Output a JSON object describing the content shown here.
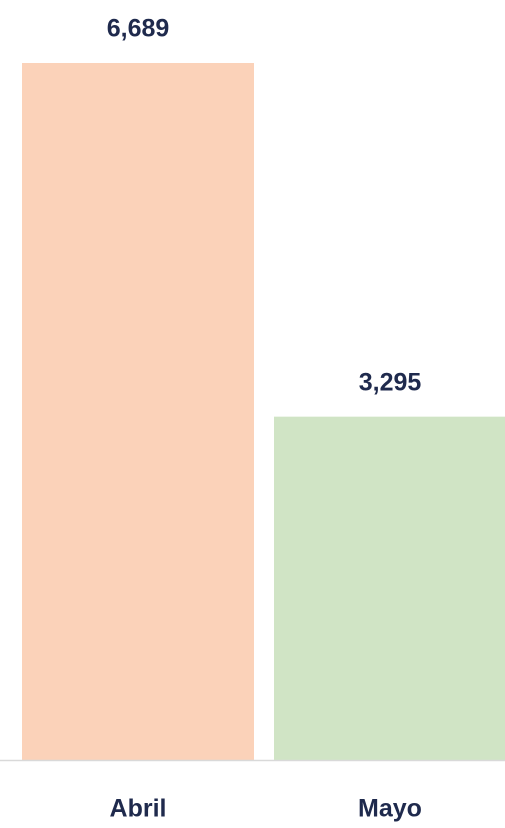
{
  "chart_data": {
    "type": "bar",
    "categories": [
      "Abril",
      "Mayo"
    ],
    "values": [
      6689,
      3295
    ],
    "value_labels": [
      "6,689",
      "3,295"
    ],
    "colors": [
      "#fbd2b9",
      "#d0e4c5"
    ]
  }
}
